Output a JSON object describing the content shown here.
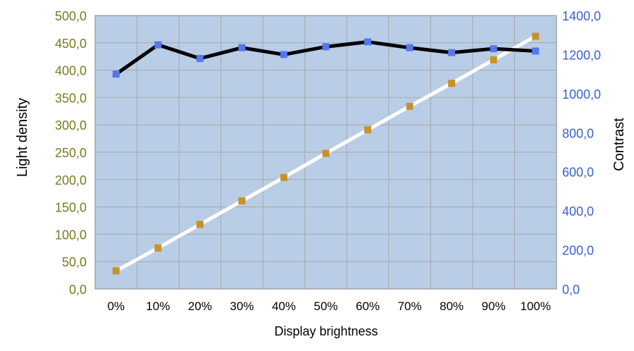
{
  "chart_data": {
    "type": "line",
    "xlabel": "Display brightness",
    "ylabel_left": "Light density",
    "ylabel_right": "Contrast",
    "categories": [
      "0%",
      "10%",
      "20%",
      "30%",
      "40%",
      "50%",
      "60%",
      "70%",
      "80%",
      "90%",
      "100%"
    ],
    "y_left": {
      "range": [
        0,
        500
      ],
      "ticks": [
        0,
        50,
        100,
        150,
        200,
        250,
        300,
        350,
        400,
        450,
        500
      ],
      "tick_labels": [
        "0,0",
        "50,0",
        "100,0",
        "150,0",
        "200,0",
        "250,0",
        "300,0",
        "350,0",
        "400,0",
        "450,0",
        "500,0"
      ],
      "tick_color": "#7a7a1e"
    },
    "y_right": {
      "range": [
        0,
        1400
      ],
      "ticks": [
        0,
        200,
        400,
        600,
        800,
        1000,
        1200,
        1400
      ],
      "tick_labels": [
        "0,0",
        "200,0",
        "400,0",
        "600,0",
        "800,0",
        "1000,0",
        "1200,0",
        "1400,0"
      ],
      "tick_color": "#3a5fd9"
    },
    "series": [
      {
        "axis": "left",
        "values": [
          33,
          75,
          118,
          161,
          204,
          248,
          291,
          334,
          376,
          419,
          462
        ],
        "line_color": "#ffffff",
        "marker_color": "#c8922a"
      },
      {
        "axis": "right",
        "values": [
          1100,
          1250,
          1180,
          1235,
          1200,
          1240,
          1265,
          1235,
          1210,
          1230,
          1218
        ],
        "line_color": "#000000",
        "marker_color": "#5577ee"
      }
    ],
    "grid": true,
    "plot_background": "#b9cde6",
    "grid_color": "#a8a8a8"
  }
}
